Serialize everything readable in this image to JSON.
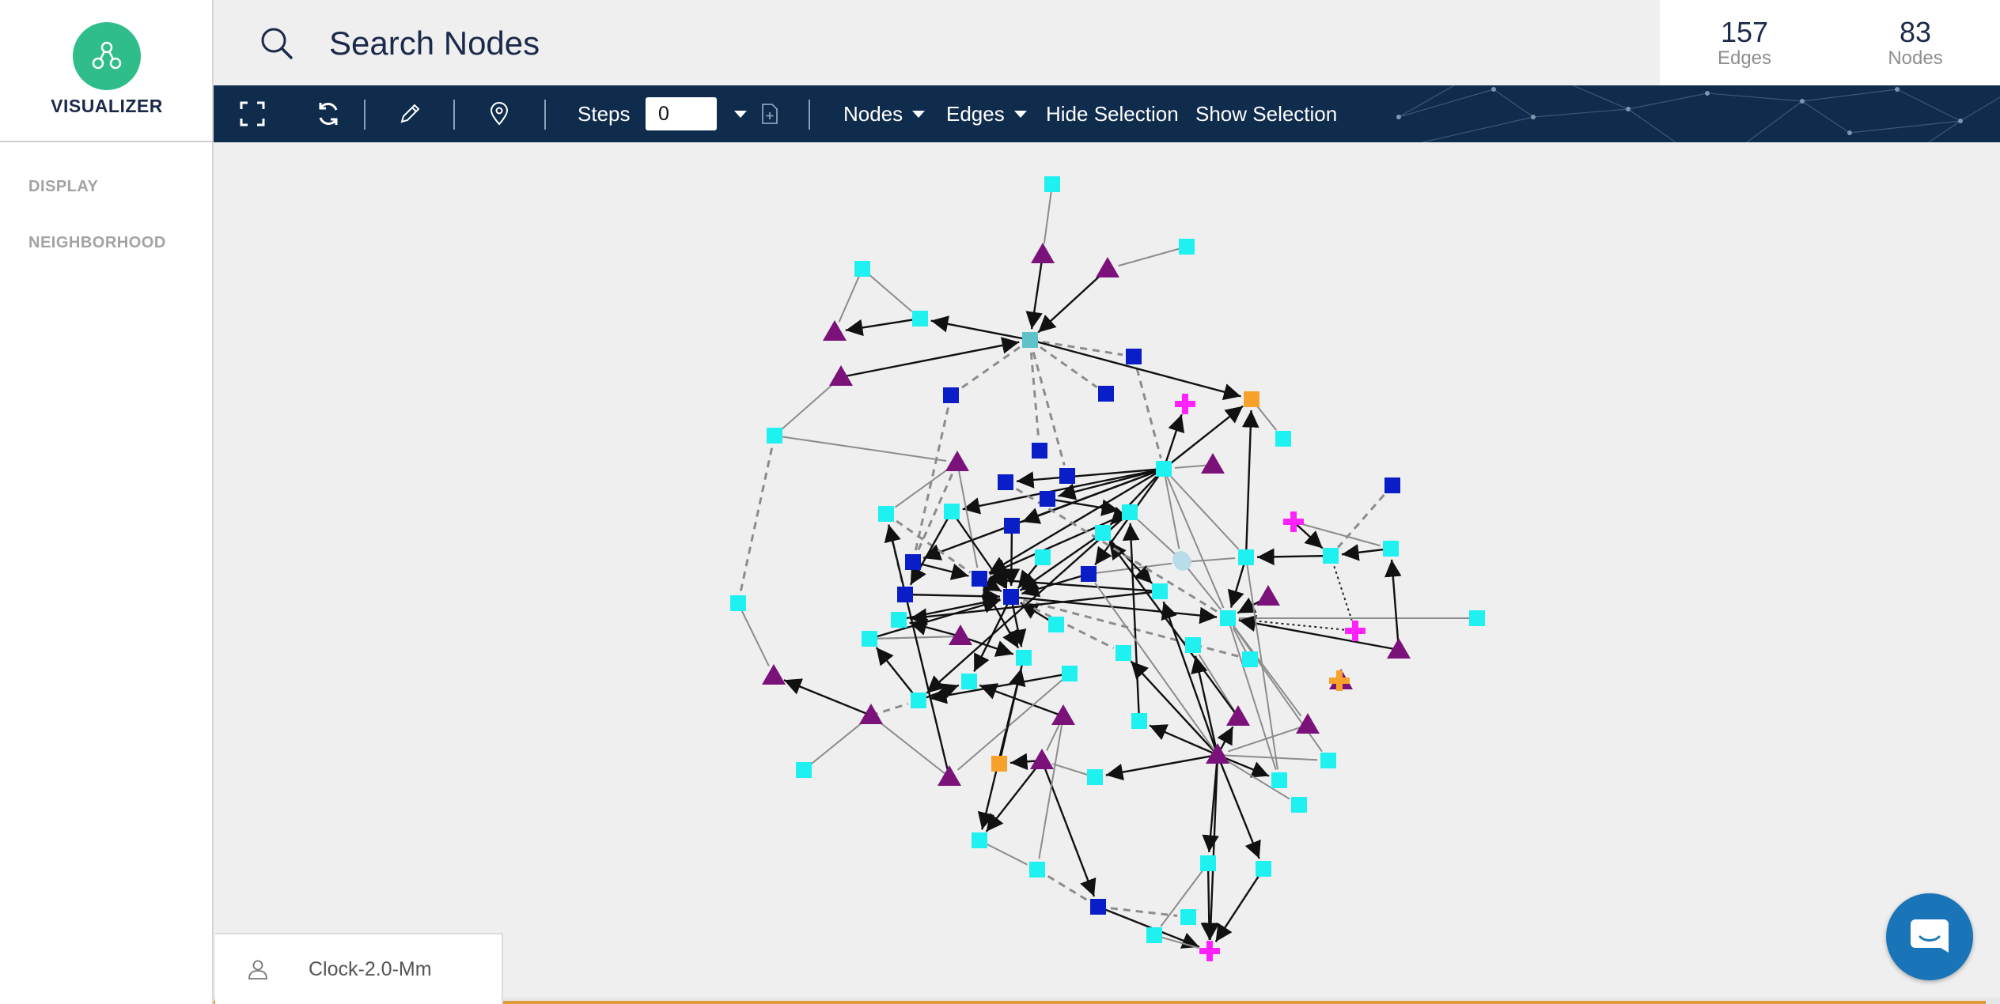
{
  "app": {
    "brand_name": "VISUALIZER",
    "brand_color": "#2fbd8a"
  },
  "sidebar": {
    "items": [
      {
        "label": "DISPLAY"
      },
      {
        "label": "NEIGHBORHOOD"
      }
    ]
  },
  "search": {
    "placeholder": "Search Nodes",
    "icon": "search-icon"
  },
  "stats": {
    "edges_count": "157",
    "edges_label": "Edges",
    "nodes_count": "83",
    "nodes_label": "Nodes"
  },
  "toolbar": {
    "icons": [
      "fullscreen-icon",
      "refresh-icon",
      "pencil-icon",
      "map-pin-icon",
      "file-add-icon"
    ],
    "steps_label": "Steps",
    "steps_value": "0",
    "nodes_menu": "Nodes",
    "edges_menu": "Edges",
    "hide_selection": "Hide Selection",
    "show_selection": "Show Selection",
    "background_color": "#0f2c4c"
  },
  "user": {
    "name": "Clock-2.0-Mm",
    "icon": "user-icon"
  },
  "chat": {
    "icon": "chat-icon",
    "color": "#1a75b8"
  },
  "graph": {
    "colors": {
      "cyan": "#1ff0f0",
      "blue": "#0a1ec8",
      "purple": "#7a127a",
      "magenta": "#ff22ff",
      "orange": "#f7a22a",
      "lightblue": "#b8dce8",
      "teal": "#5ec2c8"
    }
  }
}
